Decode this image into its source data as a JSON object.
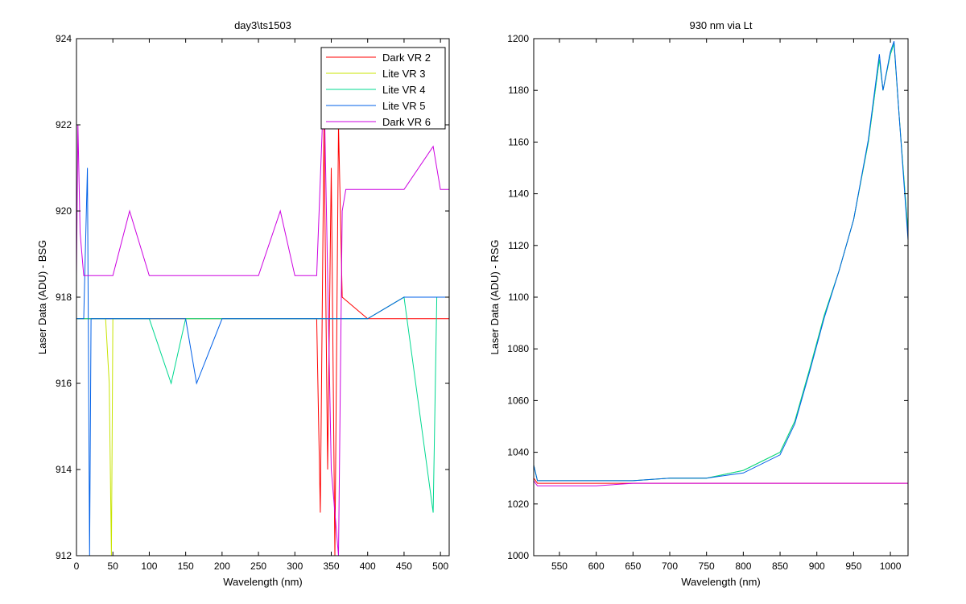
{
  "chart_data": [
    {
      "type": "line",
      "title": "day3\\ts1503",
      "xlabel": "Wavelength (nm)",
      "ylabel": "Laser Data (ADU) - BSG",
      "xlim": [
        0,
        512
      ],
      "ylim": [
        912,
        924
      ],
      "xticks": [
        0,
        50,
        100,
        150,
        200,
        250,
        300,
        350,
        400,
        450,
        500
      ],
      "yticks": [
        912,
        914,
        916,
        918,
        920,
        922,
        924
      ],
      "grid": false,
      "legend": "top-right",
      "colors": {
        "Dark VR 2": "#ff0000",
        "Lite VR 3": "#c8e400",
        "Lite VR 4": "#00d890",
        "Lite VR 5": "#0060e8",
        "Dark VR 6": "#cc00e0"
      },
      "series": [
        {
          "name": "Dark VR 2",
          "x": [
            0,
            50,
            100,
            150,
            200,
            250,
            300,
            330,
            335,
            340,
            345,
            350,
            355,
            360,
            365,
            400,
            450,
            500,
            512
          ],
          "y": [
            917.5,
            917.5,
            917.5,
            917.5,
            917.5,
            917.5,
            917.5,
            917.5,
            913,
            922,
            914,
            921,
            912,
            922,
            918,
            917.5,
            917.5,
            917.5,
            917.5
          ]
        },
        {
          "name": "Lite VR 3",
          "x": [
            0,
            40,
            45,
            48,
            50,
            100,
            150,
            200,
            250,
            300,
            350,
            400,
            450,
            500,
            512
          ],
          "y": [
            917.5,
            917.5,
            916,
            912,
            917.5,
            917.5,
            917.5,
            917.5,
            917.5,
            917.5,
            917.5,
            917.5,
            918,
            918,
            918
          ]
        },
        {
          "name": "Lite VR 4",
          "x": [
            0,
            50,
            100,
            130,
            150,
            200,
            250,
            300,
            350,
            400,
            450,
            490,
            495,
            500,
            512
          ],
          "y": [
            917.5,
            917.5,
            917.5,
            916,
            917.5,
            917.5,
            917.5,
            917.5,
            917.5,
            917.5,
            918,
            913,
            918,
            918,
            918
          ]
        },
        {
          "name": "Lite VR 5",
          "x": [
            0,
            10,
            15,
            18,
            20,
            50,
            100,
            150,
            165,
            200,
            250,
            300,
            350,
            400,
            450,
            500,
            512
          ],
          "y": [
            917.5,
            917.5,
            921,
            912,
            917.5,
            917.5,
            917.5,
            917.5,
            916,
            917.5,
            917.5,
            917.5,
            917.5,
            917.5,
            918,
            918,
            918
          ]
        },
        {
          "name": "Dark VR 6",
          "x": [
            0,
            2,
            5,
            10,
            20,
            50,
            73,
            100,
            150,
            200,
            250,
            280,
            300,
            330,
            340,
            350,
            360,
            365,
            370,
            400,
            450,
            490,
            500,
            512
          ],
          "y": [
            918.5,
            922,
            919.5,
            918.5,
            918.5,
            918.5,
            920,
            918.5,
            918.5,
            918.5,
            918.5,
            920,
            918.5,
            918.5,
            923,
            914,
            912,
            920,
            920.5,
            920.5,
            920.5,
            921.5,
            920.5,
            920.5
          ]
        }
      ]
    },
    {
      "type": "line",
      "title": "930 nm via Lt",
      "xlabel": "Wavelength (nm)",
      "ylabel": "Laser Data (ADU) - RSG",
      "xlim": [
        515,
        1024
      ],
      "ylim": [
        1000,
        1200
      ],
      "xticks": [
        550,
        600,
        650,
        700,
        750,
        800,
        850,
        900,
        950,
        1000
      ],
      "yticks": [
        1000,
        1020,
        1040,
        1060,
        1080,
        1100,
        1120,
        1140,
        1160,
        1180,
        1200
      ],
      "grid": false,
      "colors": {
        "Dark VR 2": "#ff0000",
        "Lite VR 3": "#c8e400",
        "Lite VR 4": "#00d890",
        "Lite VR 5": "#0060e8",
        "Dark VR 6": "#cc00e0"
      },
      "series": [
        {
          "name": "Dark VR 2",
          "x": [
            515,
            520,
            550,
            600,
            650,
            700,
            750,
            800,
            850,
            900,
            950,
            1000,
            1024
          ],
          "y": [
            1030,
            1028,
            1028,
            1028,
            1028,
            1028,
            1028,
            1028,
            1028,
            1028,
            1028,
            1028,
            1028
          ]
        },
        {
          "name": "Lite VR 3",
          "x": [
            515,
            520,
            550,
            600,
            650,
            700,
            750,
            800,
            850,
            870,
            890,
            910,
            930,
            950,
            970,
            985,
            990,
            1000,
            1005,
            1012,
            1024
          ],
          "y": [
            1035,
            1029,
            1029,
            1029,
            1029,
            1030,
            1030,
            1033,
            1040,
            1052,
            1072,
            1093,
            1110,
            1130,
            1160,
            1192,
            1180,
            1194,
            1198,
            1170,
            1125
          ]
        },
        {
          "name": "Lite VR 4",
          "x": [
            515,
            520,
            550,
            600,
            650,
            700,
            750,
            800,
            850,
            870,
            890,
            910,
            930,
            950,
            970,
            985,
            990,
            1000,
            1005,
            1012,
            1024
          ],
          "y": [
            1035,
            1029,
            1029,
            1029,
            1029,
            1030,
            1030,
            1033,
            1040,
            1052,
            1072,
            1093,
            1110,
            1130,
            1160,
            1192,
            1180,
            1194,
            1198,
            1170,
            1125
          ]
        },
        {
          "name": "Lite VR 5",
          "x": [
            515,
            520,
            550,
            600,
            650,
            700,
            750,
            800,
            850,
            870,
            890,
            910,
            930,
            950,
            970,
            985,
            990,
            1000,
            1005,
            1012,
            1024
          ],
          "y": [
            1035,
            1029,
            1029,
            1029,
            1029,
            1030,
            1030,
            1032,
            1039,
            1051,
            1071,
            1092,
            1110,
            1130,
            1161,
            1194,
            1180,
            1195,
            1199,
            1170,
            1122
          ]
        },
        {
          "name": "Dark VR 6",
          "x": [
            515,
            520,
            550,
            600,
            650,
            700,
            750,
            800,
            850,
            900,
            950,
            1000,
            1024
          ],
          "y": [
            1029,
            1027,
            1027,
            1027,
            1028,
            1028,
            1028,
            1028,
            1028,
            1028,
            1028,
            1028,
            1028
          ]
        }
      ]
    }
  ]
}
